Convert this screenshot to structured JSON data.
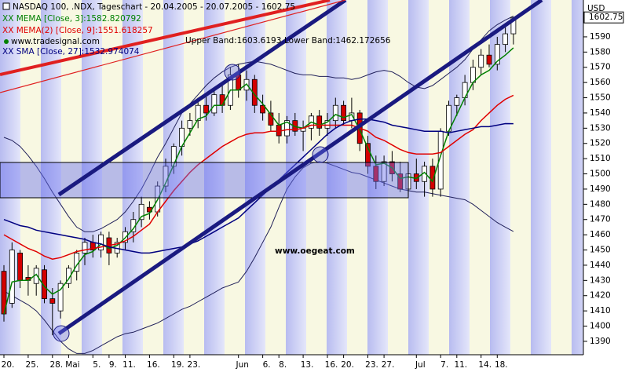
{
  "chart_data": {
    "type": "candlestick",
    "title": "NASDAQ 100, .NDX, Tageschart - 20.04.2005 - 20.07.2005 - 1602.75",
    "currency": "USD",
    "source": "www.tradesignal.com",
    "watermark": "www.oegeat.com",
    "categories": [
      "20.",
      null,
      null,
      "25.",
      null,
      null,
      "28.",
      null,
      "Mai",
      null,
      null,
      "5.",
      null,
      "9.",
      null,
      "11.",
      null,
      null,
      "16.",
      null,
      null,
      "19.",
      null,
      "23.",
      null,
      null,
      null,
      null,
      null,
      "Jun",
      null,
      null,
      "6.",
      null,
      "8.",
      null,
      null,
      "13.",
      null,
      null,
      "16.",
      null,
      "20.",
      null,
      null,
      "23.",
      null,
      "27.",
      null,
      null,
      null,
      "Jul",
      null,
      null,
      "7.",
      null,
      "11.",
      null,
      null,
      "14.",
      null,
      "18.",
      null,
      null
    ],
    "open": [
      1436,
      1415,
      1448,
      1432,
      1428,
      1437,
      1418,
      1410,
      1428,
      1436,
      1448,
      1455,
      1450,
      1458,
      1448,
      1455,
      1462,
      1470,
      1478,
      1475,
      1492,
      1505,
      1518,
      1530,
      1535,
      1545,
      1540,
      1552,
      1545,
      1565,
      1555,
      1562,
      1545,
      1540,
      1532,
      1525,
      1535,
      1528,
      1530,
      1538,
      1530,
      1535,
      1545,
      1535,
      1540,
      1520,
      1505,
      1495,
      1508,
      1500,
      1490,
      1500,
      1495,
      1505,
      1490,
      1528,
      1545,
      1550,
      1560,
      1570,
      1578,
      1572,
      1585,
      1592
    ],
    "high": [
      1440,
      1455,
      1450,
      1440,
      1440,
      1440,
      1425,
      1430,
      1440,
      1450,
      1458,
      1460,
      1462,
      1462,
      1458,
      1465,
      1475,
      1485,
      1482,
      1495,
      1510,
      1520,
      1535,
      1540,
      1550,
      1552,
      1555,
      1560,
      1570,
      1572,
      1568,
      1565,
      1552,
      1548,
      1540,
      1538,
      1540,
      1535,
      1540,
      1542,
      1540,
      1550,
      1548,
      1550,
      1542,
      1525,
      1512,
      1512,
      1515,
      1508,
      1505,
      1510,
      1508,
      1510,
      1530,
      1548,
      1552,
      1565,
      1575,
      1582,
      1585,
      1590,
      1598,
      1603
    ],
    "low": [
      1403,
      1412,
      1425,
      1420,
      1420,
      1415,
      1394,
      1405,
      1425,
      1430,
      1440,
      1445,
      1445,
      1440,
      1445,
      1450,
      1455,
      1465,
      1470,
      1472,
      1488,
      1500,
      1512,
      1525,
      1530,
      1535,
      1538,
      1540,
      1542,
      1550,
      1548,
      1540,
      1535,
      1528,
      1520,
      1520,
      1525,
      1515,
      1522,
      1525,
      1525,
      1530,
      1532,
      1530,
      1515,
      1500,
      1490,
      1492,
      1495,
      1488,
      1485,
      1490,
      1485,
      1485,
      1485,
      1525,
      1538,
      1545,
      1555,
      1565,
      1570,
      1568,
      1580,
      1585
    ],
    "close": [
      1408,
      1450,
      1430,
      1430,
      1438,
      1418,
      1415,
      1428,
      1438,
      1448,
      1455,
      1450,
      1460,
      1448,
      1455,
      1462,
      1470,
      1480,
      1475,
      1492,
      1505,
      1518,
      1530,
      1535,
      1545,
      1540,
      1552,
      1545,
      1565,
      1555,
      1562,
      1545,
      1540,
      1532,
      1525,
      1535,
      1528,
      1530,
      1538,
      1530,
      1535,
      1545,
      1535,
      1540,
      1520,
      1505,
      1495,
      1508,
      1500,
      1490,
      1500,
      1495,
      1505,
      1490,
      1528,
      1545,
      1550,
      1560,
      1570,
      1578,
      1572,
      1585,
      1592,
      1602.75
    ],
    "series": [
      {
        "name": "XX MEMA [Close, 3]:1582.820792",
        "color": "#008000",
        "values": [
          1408,
          1429,
          1430,
          1430,
          1434,
          1426,
          1421,
          1424,
          1431,
          1440,
          1447,
          1449,
          1454,
          1451,
          1453,
          1458,
          1464,
          1472,
          1474,
          1483,
          1494,
          1506,
          1518,
          1527,
          1536,
          1538,
          1545,
          1545,
          1555,
          1555,
          1559,
          1552,
          1546,
          1539,
          1532,
          1534,
          1531,
          1530,
          1534,
          1532,
          1534,
          1539,
          1537,
          1539,
          1529,
          1517,
          1506,
          1507,
          1504,
          1497,
          1498,
          1497,
          1501,
          1495,
          1512,
          1528,
          1539,
          1550,
          1560,
          1565,
          1568,
          1574,
          1578,
          1582.82
        ]
      },
      {
        "name": "XX MEMA(2) [Close, 9]:1551.618257",
        "color": "#e00000",
        "values": [
          1460,
          1457,
          1454,
          1451,
          1449,
          1446,
          1444,
          1445,
          1447,
          1449,
          1450,
          1451,
          1452,
          1453,
          1454,
          1456,
          1459,
          1463,
          1467,
          1475,
          1482,
          1489,
          1495,
          1501,
          1506,
          1510,
          1514,
          1518,
          1521,
          1524,
          1526,
          1527,
          1527,
          1528,
          1528,
          1529,
          1529,
          1530,
          1532,
          1532,
          1532,
          1532,
          1532,
          1532,
          1530,
          1528,
          1524,
          1522,
          1519,
          1516,
          1514,
          1513,
          1513,
          1513,
          1514,
          1518,
          1522,
          1526,
          1529,
          1535,
          1540,
          1545,
          1549,
          1551.62
        ]
      },
      {
        "name": "XX SMA [Close, 27]:1532.974074",
        "color": "#000080",
        "values": [
          1470,
          1468,
          1466,
          1465,
          1463,
          1462,
          1461,
          1460,
          1459,
          1458,
          1457,
          1455,
          1454,
          1452,
          1451,
          1450,
          1449,
          1448,
          1448,
          1449,
          1450,
          1451,
          1452,
          1454,
          1456,
          1459,
          1462,
          1465,
          1468,
          1471,
          1476,
          1481,
          1486,
          1491,
          1496,
          1501,
          1506,
          1511,
          1516,
          1521,
          1526,
          1530,
          1533,
          1535,
          1536,
          1536,
          1535,
          1534,
          1532,
          1531,
          1530,
          1529,
          1528,
          1528,
          1528,
          1527,
          1528,
          1529,
          1530,
          1531,
          1531,
          1532,
          1533,
          1532.97
        ]
      }
    ],
    "bands": {
      "upper_label": "Upper Band:1603.6193",
      "lower_label": "Lower Band:1462.172656",
      "color": "#20205a",
      "upper": [
        1524,
        1522,
        1518,
        1512,
        1505,
        1497,
        1488,
        1480,
        1472,
        1465,
        1462,
        1462,
        1464,
        1467,
        1470,
        1475,
        1482,
        1490,
        1500,
        1511,
        1520,
        1530,
        1540,
        1546,
        1552,
        1558,
        1563,
        1567,
        1570,
        1572,
        1573,
        1574,
        1573,
        1572,
        1570,
        1568,
        1566,
        1565,
        1565,
        1564,
        1564,
        1563,
        1563,
        1562,
        1563,
        1565,
        1567,
        1568,
        1567,
        1564,
        1560,
        1557,
        1556,
        1558,
        1562,
        1566,
        1570,
        1575,
        1582,
        1588,
        1594,
        1598,
        1601,
        1603.62
      ],
      "lower": [
        1423,
        1420,
        1417,
        1414,
        1410,
        1404,
        1397,
        1390,
        1385,
        1382,
        1382,
        1384,
        1387,
        1390,
        1393,
        1395,
        1396,
        1398,
        1400,
        1402,
        1405,
        1408,
        1411,
        1413,
        1416,
        1419,
        1422,
        1425,
        1427,
        1429,
        1436,
        1445,
        1455,
        1465,
        1478,
        1490,
        1498,
        1504,
        1507,
        1508,
        1507,
        1505,
        1503,
        1501,
        1500,
        1498,
        1496,
        1494,
        1492,
        1490,
        1489,
        1488,
        1488,
        1487,
        1486,
        1485,
        1484,
        1483,
        1480,
        1476,
        1472,
        1468,
        1465,
        1462.17
      ]
    },
    "up_color": "#ffffff",
    "down_color": "#d40000",
    "ylim": [
      1381.2,
      1614.2
    ],
    "yticks": [
      1390,
      1400,
      1410,
      1420,
      1430,
      1440,
      1450,
      1460,
      1470,
      1480,
      1490,
      1500,
      1510,
      1520,
      1530,
      1540,
      1550,
      1560,
      1570,
      1580,
      1590
    ]
  }
}
